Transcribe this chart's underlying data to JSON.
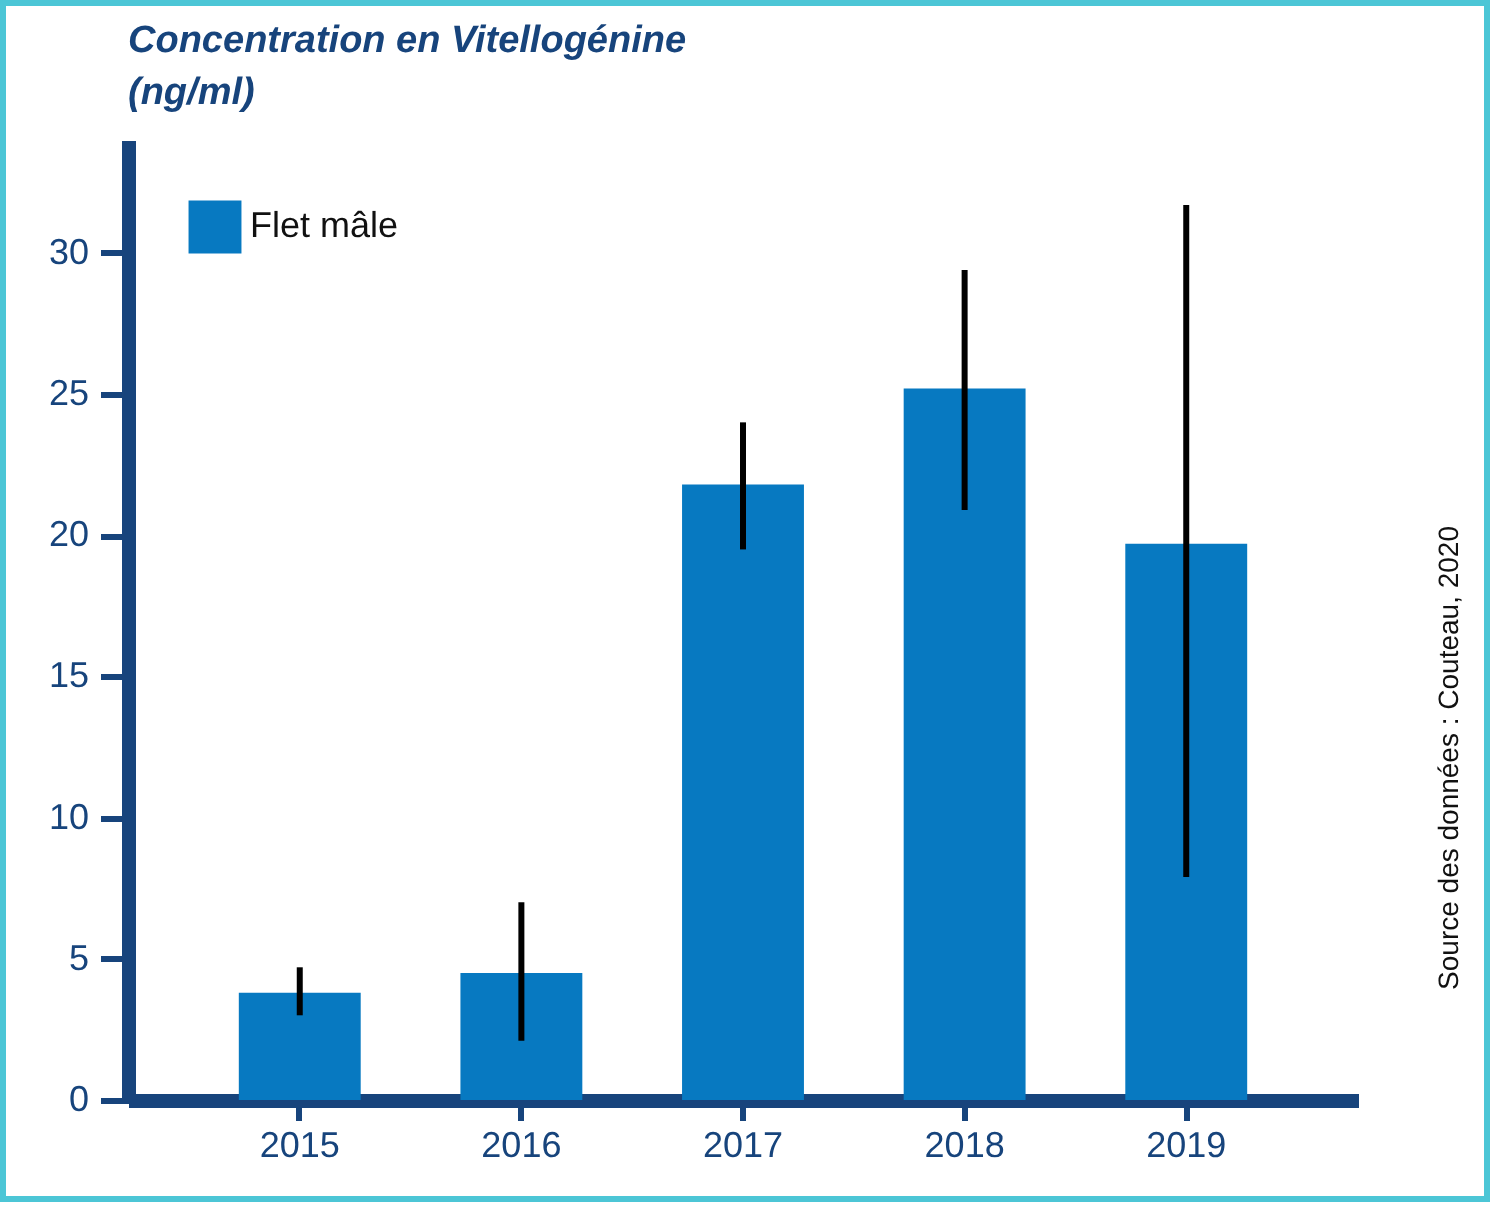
{
  "chart_data": {
    "type": "bar",
    "ylabel": "Concentration en Vitellogénine (ng/ml)",
    "categories": [
      "2015",
      "2016",
      "2017",
      "2018",
      "2019"
    ],
    "series": [
      {
        "name": "Flet mâle",
        "color": "#0779c1",
        "values": [
          3.8,
          4.5,
          21.8,
          25.2,
          19.7
        ],
        "errors": [
          [
            3.0,
            4.7
          ],
          [
            2.1,
            7.0
          ],
          [
            19.5,
            24.0
          ],
          [
            20.9,
            29.4
          ],
          [
            7.9,
            31.7
          ]
        ]
      }
    ],
    "ylim": [
      0,
      34
    ],
    "yticks": [
      0,
      5,
      10,
      15,
      20,
      25,
      30
    ],
    "grid": false,
    "legend": "top left",
    "annotations": [
      "Source des données : Couteau, 2020"
    ]
  }
}
